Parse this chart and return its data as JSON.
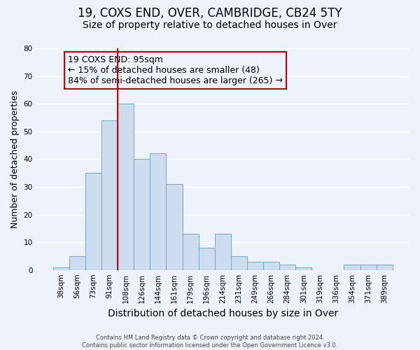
{
  "title": "19, COXS END, OVER, CAMBRIDGE, CB24 5TY",
  "subtitle": "Size of property relative to detached houses in Over",
  "xlabel": "Distribution of detached houses by size in Over",
  "ylabel": "Number of detached properties",
  "bar_labels": [
    "38sqm",
    "56sqm",
    "73sqm",
    "91sqm",
    "108sqm",
    "126sqm",
    "144sqm",
    "161sqm",
    "179sqm",
    "196sqm",
    "214sqm",
    "231sqm",
    "249sqm",
    "266sqm",
    "284sqm",
    "301sqm",
    "319sqm",
    "336sqm",
    "354sqm",
    "371sqm",
    "389sqm"
  ],
  "bar_heights": [
    1,
    5,
    35,
    54,
    60,
    40,
    42,
    31,
    13,
    8,
    13,
    5,
    3,
    3,
    2,
    1,
    0,
    0,
    2,
    2,
    2
  ],
  "bar_color": "#cddcee",
  "bar_edge_color": "#7bafd4",
  "vline_x": 3.5,
  "vline_color": "#cc0000",
  "annotation_line1": "19 COXS END: 95sqm",
  "annotation_line2": "← 15% of detached houses are smaller (48)",
  "annotation_line3": "84% of semi-detached houses are larger (265) →",
  "annotation_box_edgecolor": "#cc0000",
  "ylim": [
    0,
    80
  ],
  "yticks": [
    0,
    10,
    20,
    30,
    40,
    50,
    60,
    70,
    80
  ],
  "footer": "Contains HM Land Registry data © Crown copyright and database right 2024.\nContains public sector information licensed under the Open Government Licence v3.0.",
  "bg_color": "#eef3fb",
  "grid_color": "#ffffff",
  "title_fontsize": 12,
  "subtitle_fontsize": 10,
  "xlabel_fontsize": 10,
  "ylabel_fontsize": 9,
  "tick_fontsize": 7.5,
  "annotation_fontsize": 9,
  "footer_fontsize": 6
}
